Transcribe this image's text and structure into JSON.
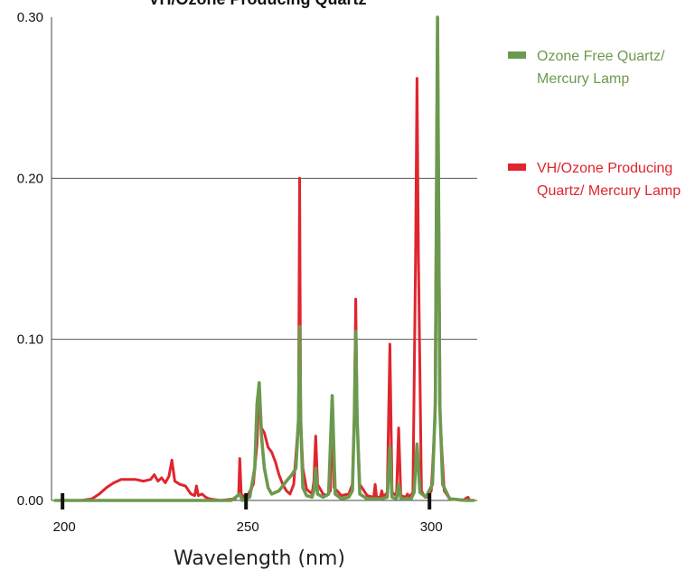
{
  "chart_data": {
    "type": "line",
    "title": "VH/Ozone Producing Quartz",
    "xlabel": "Wavelength (nm)",
    "ylabel": "",
    "xlim": [
      197,
      313
    ],
    "ylim": [
      0,
      0.3
    ],
    "x_ticks": [
      "200",
      "250",
      "300"
    ],
    "x_tick_values": [
      200,
      250,
      300
    ],
    "y_ticks": [
      "0.00",
      "0.10",
      "0.20",
      "0.30"
    ],
    "y_tick_values": [
      0,
      0.1,
      0.2,
      0.3
    ],
    "grid": "horizontal",
    "legend_position": "right",
    "series": [
      {
        "name": "VH/Ozone Producing Quartz/ Mercury Lamp",
        "color": "#e0252e",
        "points": [
          [
            198,
            0.0
          ],
          [
            205,
            0.0
          ],
          [
            208,
            0.001
          ],
          [
            210,
            0.004
          ],
          [
            212,
            0.008
          ],
          [
            214,
            0.011
          ],
          [
            216,
            0.013
          ],
          [
            218,
            0.013
          ],
          [
            220,
            0.013
          ],
          [
            222,
            0.012
          ],
          [
            224,
            0.013
          ],
          [
            225,
            0.016
          ],
          [
            226,
            0.012
          ],
          [
            227,
            0.014
          ],
          [
            228,
            0.011
          ],
          [
            229,
            0.015
          ],
          [
            229.8,
            0.025
          ],
          [
            230.6,
            0.012
          ],
          [
            232,
            0.01
          ],
          [
            233.5,
            0.009
          ],
          [
            235,
            0.004
          ],
          [
            236,
            0.003
          ],
          [
            236.5,
            0.009
          ],
          [
            237,
            0.003
          ],
          [
            238,
            0.004
          ],
          [
            239,
            0.002
          ],
          [
            240,
            0.001
          ],
          [
            243,
            0.0
          ],
          [
            247,
            0.001
          ],
          [
            248,
            0.004
          ],
          [
            248.3,
            0.026
          ],
          [
            248.7,
            0.004
          ],
          [
            250,
            0.001
          ],
          [
            252,
            0.01
          ],
          [
            253,
            0.035
          ],
          [
            253.6,
            0.073
          ],
          [
            254.2,
            0.045
          ],
          [
            255,
            0.042
          ],
          [
            256,
            0.033
          ],
          [
            257,
            0.03
          ],
          [
            258,
            0.024
          ],
          [
            259,
            0.016
          ],
          [
            260,
            0.01
          ],
          [
            261,
            0.006
          ],
          [
            262,
            0.004
          ],
          [
            263,
            0.01
          ],
          [
            264.3,
            0.05
          ],
          [
            264.6,
            0.2
          ],
          [
            264.9,
            0.05
          ],
          [
            265.5,
            0.02
          ],
          [
            266.5,
            0.007
          ],
          [
            268,
            0.004
          ],
          [
            268.5,
            0.012
          ],
          [
            269,
            0.04
          ],
          [
            269.5,
            0.01
          ],
          [
            271,
            0.004
          ],
          [
            272,
            0.003
          ],
          [
            273,
            0.006
          ],
          [
            273.5,
            0.065
          ],
          [
            274,
            0.008
          ],
          [
            276,
            0.003
          ],
          [
            278,
            0.004
          ],
          [
            279,
            0.01
          ],
          [
            279.5,
            0.05
          ],
          [
            279.9,
            0.125
          ],
          [
            280.3,
            0.05
          ],
          [
            281,
            0.01
          ],
          [
            283,
            0.003
          ],
          [
            284.8,
            0.002
          ],
          [
            285.2,
            0.01
          ],
          [
            285.6,
            0.002
          ],
          [
            286.6,
            0.002
          ],
          [
            287,
            0.006
          ],
          [
            287.4,
            0.002
          ],
          [
            288.5,
            0.005
          ],
          [
            289.2,
            0.097
          ],
          [
            289.8,
            0.005
          ],
          [
            291,
            0.003
          ],
          [
            291.6,
            0.045
          ],
          [
            292.2,
            0.003
          ],
          [
            293.5,
            0.002
          ],
          [
            294,
            0.004
          ],
          [
            294.5,
            0.002
          ],
          [
            295.5,
            0.005
          ],
          [
            296.2,
            0.15
          ],
          [
            296.6,
            0.262
          ],
          [
            297,
            0.15
          ],
          [
            297.8,
            0.006
          ],
          [
            298.8,
            0.002
          ],
          [
            299.5,
            0.002
          ],
          [
            300.5,
            0.006
          ],
          [
            301.5,
            0.05
          ],
          [
            302.2,
            0.3
          ],
          [
            302.9,
            0.05
          ],
          [
            304,
            0.006
          ],
          [
            305.5,
            0.001
          ],
          [
            309,
            0.0
          ],
          [
            310.5,
            0.002
          ],
          [
            311,
            0.0
          ]
        ]
      },
      {
        "name": "Ozone Free Quartz/ Mercury Lamp",
        "color": "#6b9a4e",
        "points": [
          [
            198,
            0.0
          ],
          [
            230,
            0.0
          ],
          [
            246,
            0.0
          ],
          [
            248.3,
            0.004
          ],
          [
            249,
            0.0
          ],
          [
            251,
            0.002
          ],
          [
            252.4,
            0.02
          ],
          [
            253.0,
            0.06
          ],
          [
            253.6,
            0.073
          ],
          [
            254.2,
            0.04
          ],
          [
            255,
            0.02
          ],
          [
            256,
            0.008
          ],
          [
            257,
            0.004
          ],
          [
            259,
            0.006
          ],
          [
            261,
            0.012
          ],
          [
            262.5,
            0.016
          ],
          [
            263.6,
            0.02
          ],
          [
            264.3,
            0.05
          ],
          [
            264.6,
            0.108
          ],
          [
            264.9,
            0.05
          ],
          [
            265.5,
            0.008
          ],
          [
            266.5,
            0.003
          ],
          [
            268,
            0.002
          ],
          [
            268.5,
            0.006
          ],
          [
            269,
            0.02
          ],
          [
            269.5,
            0.004
          ],
          [
            271,
            0.002
          ],
          [
            272.5,
            0.004
          ],
          [
            273.5,
            0.065
          ],
          [
            274.3,
            0.004
          ],
          [
            276,
            0.001
          ],
          [
            278,
            0.002
          ],
          [
            279,
            0.006
          ],
          [
            279.5,
            0.05
          ],
          [
            279.9,
            0.105
          ],
          [
            280.3,
            0.05
          ],
          [
            281,
            0.004
          ],
          [
            283,
            0.001
          ],
          [
            287,
            0.001
          ],
          [
            288.5,
            0.002
          ],
          [
            289.2,
            0.033
          ],
          [
            289.8,
            0.002
          ],
          [
            291,
            0.001
          ],
          [
            291.6,
            0.01
          ],
          [
            292.2,
            0.001
          ],
          [
            295,
            0.001
          ],
          [
            295.8,
            0.005
          ],
          [
            296.6,
            0.035
          ],
          [
            297.4,
            0.005
          ],
          [
            299,
            0.002
          ],
          [
            300.8,
            0.01
          ],
          [
            301.6,
            0.06
          ],
          [
            302.2,
            0.3
          ],
          [
            302.8,
            0.06
          ],
          [
            303.6,
            0.01
          ],
          [
            305.5,
            0.001
          ],
          [
            310,
            0.0
          ],
          [
            312,
            0.0
          ]
        ]
      }
    ]
  }
}
